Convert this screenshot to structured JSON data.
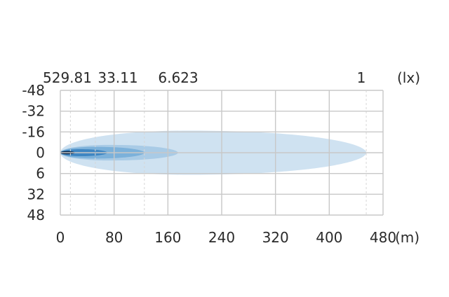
{
  "chart_data": {
    "type": "heatmap",
    "title": "",
    "xlabel": "",
    "ylabel": "",
    "x_unit": "(m)",
    "lux_unit": "(lx)",
    "x_ticks": [
      0,
      80,
      160,
      240,
      320,
      400,
      480
    ],
    "y_ticks": [
      -48,
      -32,
      -16,
      0,
      6,
      32,
      48
    ],
    "xlim": [
      0,
      480
    ],
    "ylim": [
      -48,
      48
    ],
    "grid": true,
    "lux_markers": [
      {
        "label": "529.81",
        "x": 15
      },
      {
        "label": "33.11",
        "x": 52
      },
      {
        "label": "6.623",
        "x": 125
      },
      {
        "label": "1",
        "x": 455
      }
    ],
    "isolux_zones": [
      {
        "lux": "1",
        "x_end": 455,
        "half_width": 17,
        "color": "#cfe2f1"
      },
      {
        "lux": "6.623",
        "x_end": 175,
        "half_width": 6,
        "color": "#a9cbe6"
      },
      {
        "lux": "33.11",
        "x_end": 125,
        "half_width": 4.5,
        "color": "#7cb1da"
      },
      {
        "lux": "529.81",
        "x_end": 70,
        "half_width": 2.7,
        "color": "#3f86c2"
      },
      {
        "lux": "core",
        "x_end": 22,
        "half_width": 1.2,
        "color": "#0b2545"
      }
    ]
  }
}
